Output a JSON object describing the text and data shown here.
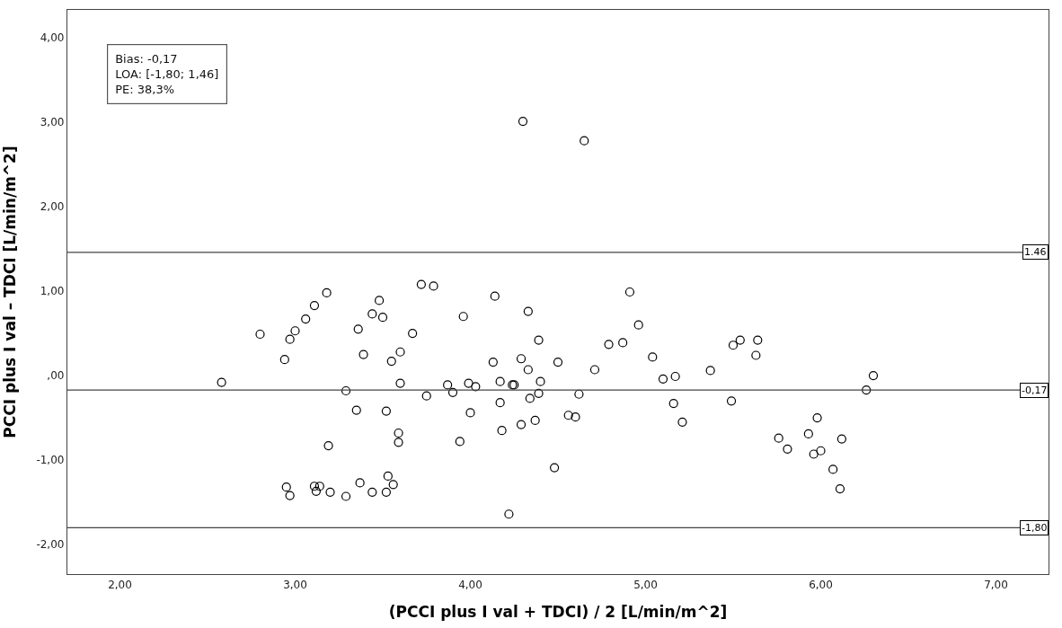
{
  "chart_data": {
    "type": "scatter",
    "xlabel": "(PCCI plus I val + TDCI) / 2 [L/min/m^2]",
    "ylabel": "PCCI plus I val – TDCI [L/min/m^2]",
    "annotations": [
      "Bias: -0,17\nLOA: [-1,80; 1,46]\nPE: 38,3%"
    ],
    "marker": "circle",
    "xlim": [
      1.7,
      7.3
    ],
    "ylim": [
      -2.35,
      4.33
    ],
    "xticks": [
      {
        "value": 2,
        "label": "2,00"
      },
      {
        "value": 3,
        "label": "3,00"
      },
      {
        "value": 4,
        "label": "4,00"
      },
      {
        "value": 5,
        "label": "5,00"
      },
      {
        "value": 6,
        "label": "6,00"
      },
      {
        "value": 7,
        "label": "7,00"
      }
    ],
    "yticks": [
      {
        "value": -2,
        "label": "-2,00"
      },
      {
        "value": -1,
        "label": "-1,00"
      },
      {
        "value": 0,
        "label": ",00"
      },
      {
        "value": 1,
        "label": "1,00"
      },
      {
        "value": 2,
        "label": "2,00"
      },
      {
        "value": 3,
        "label": "3,00"
      },
      {
        "value": 4,
        "label": "4,00"
      }
    ],
    "ref_lines": [
      {
        "axis": "y",
        "value": 1.46,
        "label": "1.46",
        "color": "#444444"
      },
      {
        "axis": "y",
        "value": -0.17,
        "label": "-0,17",
        "color": "#444444"
      },
      {
        "axis": "y",
        "value": -1.8,
        "label": "-1,80",
        "color": "#444444"
      }
    ],
    "series": [
      {
        "color": "#000000",
        "x": [
          2.58,
          2.8,
          2.94,
          2.97,
          3.0,
          3.06,
          3.11,
          3.29,
          3.36,
          3.39,
          3.35,
          3.44,
          3.5,
          3.48,
          3.52,
          3.55,
          3.6,
          3.6,
          3.59,
          3.59,
          3.67,
          3.75,
          3.87,
          3.9,
          3.94,
          3.96,
          3.99,
          4.03,
          4.0,
          4.13,
          4.17,
          4.17,
          4.18,
          4.22,
          2.95,
          2.97,
          3.11,
          3.12,
          3.14,
          3.2,
          3.19,
          3.29,
          3.37,
          3.44,
          3.52,
          3.53,
          3.56,
          3.18,
          3.72,
          3.79,
          4.14,
          4.3,
          4.65,
          4.33,
          4.91,
          4.25,
          4.24,
          4.29,
          4.33,
          4.39,
          4.4,
          4.39,
          4.34,
          4.29,
          4.37,
          4.48,
          4.5,
          4.56,
          4.6,
          4.62,
          4.71,
          4.79,
          4.87,
          4.96,
          5.04,
          5.1,
          5.17,
          5.16,
          5.21,
          5.37,
          5.49,
          5.5,
          5.54,
          5.64,
          5.63,
          5.76,
          5.81,
          5.93,
          5.98,
          5.96,
          6.0,
          6.07,
          6.12,
          6.11,
          6.26,
          6.3
        ],
        "values": [
          -0.08,
          0.49,
          0.19,
          0.43,
          0.53,
          0.67,
          0.83,
          -0.18,
          0.55,
          0.25,
          -0.41,
          0.73,
          0.69,
          0.89,
          -0.42,
          0.17,
          0.28,
          -0.09,
          -0.68,
          -0.79,
          0.5,
          -0.24,
          -0.11,
          -0.2,
          -0.78,
          0.7,
          -0.09,
          -0.13,
          -0.44,
          0.16,
          -0.07,
          -0.32,
          -0.65,
          -1.64,
          -1.32,
          -1.42,
          -1.31,
          -1.37,
          -1.31,
          -1.38,
          -0.83,
          -1.43,
          -1.27,
          -1.38,
          -1.38,
          -1.19,
          -1.29,
          0.98,
          1.08,
          1.06,
          0.94,
          3.01,
          2.78,
          0.76,
          0.99,
          -0.11,
          -0.11,
          0.2,
          0.07,
          0.42,
          -0.07,
          -0.21,
          -0.27,
          -0.58,
          -0.53,
          -1.09,
          0.16,
          -0.47,
          -0.49,
          -0.22,
          0.07,
          0.37,
          0.39,
          0.6,
          0.22,
          -0.04,
          -0.01,
          -0.33,
          -0.55,
          0.06,
          -0.3,
          0.36,
          0.42,
          0.42,
          0.24,
          -0.74,
          -0.87,
          -0.69,
          -0.5,
          -0.93,
          -0.89,
          -1.11,
          -0.75,
          -1.34,
          -0.17,
          0.0
        ]
      }
    ]
  }
}
